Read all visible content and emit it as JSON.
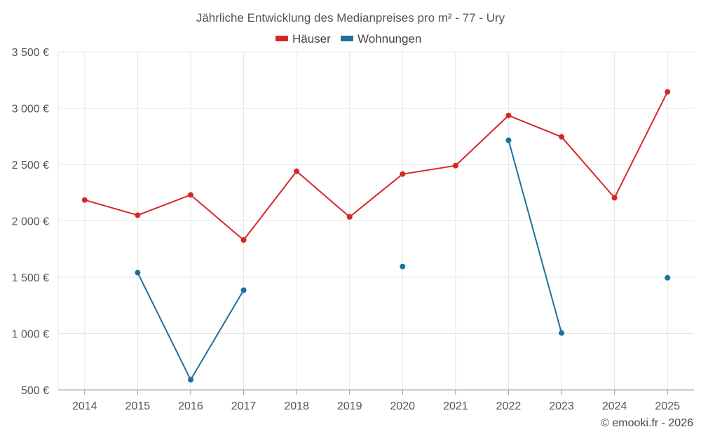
{
  "chart_data": {
    "type": "line",
    "title": "Jährliche Entwicklung des Medianpreises pro m² - 77 - Ury",
    "categories": [
      "2014",
      "2015",
      "2016",
      "2017",
      "2018",
      "2019",
      "2020",
      "2021",
      "2022",
      "2023",
      "2024",
      "2025"
    ],
    "series": [
      {
        "name": "Häuser",
        "color": "#d62728",
        "values": [
          2185,
          2050,
          2230,
          1830,
          2440,
          2035,
          2415,
          2490,
          2935,
          2745,
          2205,
          3145
        ]
      },
      {
        "name": "Wohnungen",
        "color": "#1f6f9f",
        "values": [
          null,
          1540,
          590,
          1385,
          null,
          null,
          1595,
          null,
          2715,
          1005,
          null,
          1495
        ]
      }
    ],
    "ylim": [
      500,
      3500
    ],
    "yticks": [
      500,
      1000,
      1500,
      2000,
      2500,
      3000,
      3500
    ],
    "ytick_labels": [
      "500 €",
      "1 000 €",
      "1 500 €",
      "2 000 €",
      "2 500 €",
      "3 000 €",
      "3 500 €"
    ],
    "legend_position": "top-center",
    "grid": true
  },
  "credit": "© emooki.fr - 2026"
}
